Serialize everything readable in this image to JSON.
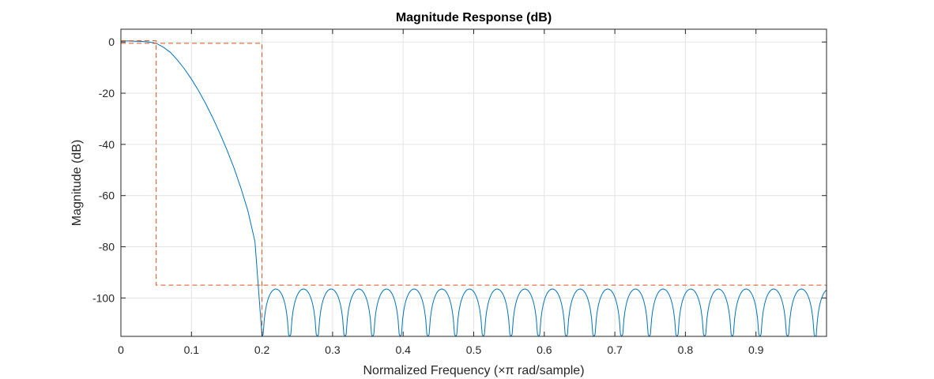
{
  "chart_data": {
    "type": "line",
    "title": "Magnitude Response (dB)",
    "xlabel": "Normalized Frequency (×π rad/sample)",
    "ylabel": "Magnitude (dB)",
    "xlim": [
      0,
      1
    ],
    "ylim": [
      -115,
      5
    ],
    "xticks": [
      0,
      0.1,
      0.2,
      0.3,
      0.4,
      0.5,
      0.6,
      0.7,
      0.8,
      0.9
    ],
    "xtick_labels": [
      "0",
      "0.1",
      "0.2",
      "0.3",
      "0.4",
      "0.5",
      "0.6",
      "0.7",
      "0.8",
      "0.9"
    ],
    "yticks": [
      0,
      -20,
      -40,
      -60,
      -80,
      -100
    ],
    "ytick_labels": [
      "0",
      "-20",
      "-40",
      "-60",
      "-80",
      "-100"
    ],
    "grid": true,
    "series": [
      {
        "color": "#0072BD",
        "style": "solid",
        "x": [
          0,
          0.01,
          0.02,
          0.03,
          0.04,
          0.05,
          0.06,
          0.07,
          0.08,
          0.09,
          0.1,
          0.11,
          0.12,
          0.13,
          0.14,
          0.15,
          0.16,
          0.17,
          0.18,
          0.19,
          0.2
        ],
        "y": [
          0.4,
          0.4,
          0.3,
          0.2,
          0.0,
          -0.5,
          -2,
          -4,
          -7,
          -10.5,
          -14.5,
          -19,
          -24,
          -29.5,
          -35.5,
          -42,
          -49,
          -57,
          -66,
          -78,
          -115
        ],
        "stopband": {
          "start": 0.2,
          "lobe_spacing": 0.0392,
          "first_null": 0.2,
          "peak_db": -96.5,
          "floor_db": -115
        }
      },
      {
        "color": "#D95319",
        "style": "dashed",
        "label_type": "passband upper mask",
        "x": [
          0,
          0.2,
          0.2
        ],
        "y": [
          -0.5,
          -0.5,
          -115
        ]
      },
      {
        "color": "#D95319",
        "style": "dashed",
        "label_type": "passband lower mask",
        "x": [
          0,
          0.05,
          0.05,
          1
        ],
        "y": [
          0.5,
          0.5,
          -95,
          -95
        ]
      }
    ]
  }
}
